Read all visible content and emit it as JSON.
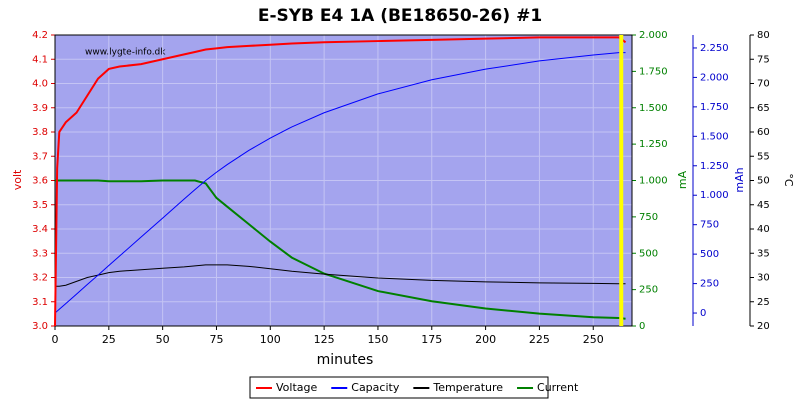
{
  "chart_data": {
    "type": "line",
    "title": "E-SYB E4 1A (BE18650-26) #1",
    "watermark": "www.lygte-info.dk",
    "xlabel": "minutes",
    "ylabel": "volt",
    "ylabel_color": "#dd0000",
    "y2label": "mA",
    "y2label_color": "#008000",
    "y3label": "mAh",
    "y3label_color": "#0000cc",
    "y4label": "°C",
    "y4label_color": "#000000",
    "xlim": [
      0,
      268
    ],
    "xticks": [
      0,
      25,
      50,
      75,
      100,
      125,
      150,
      175,
      200,
      225,
      250
    ],
    "ylim": [
      3.0,
      4.2
    ],
    "yticks": [
      {
        "value": 3.0,
        "label": "3.0"
      },
      3.1,
      3.2,
      3.3,
      3.4,
      3.5,
      3.6,
      3.7,
      3.8,
      3.9,
      {
        "value": 4.0,
        "label": "4.0"
      },
      4.1,
      4.2
    ],
    "y2lim": [
      0,
      2000
    ],
    "y2ticks": [
      0,
      250,
      500,
      750,
      {
        "value": 1000,
        "label": "1.000"
      },
      {
        "value": 1250,
        "label": "1.250"
      },
      {
        "value": 1500,
        "label": "1.500"
      },
      {
        "value": 1750,
        "label": "1.750"
      },
      {
        "value": 2000,
        "label": "2.000"
      }
    ],
    "y3lim": [
      -110,
      2360
    ],
    "y3ticks": [
      0,
      250,
      500,
      750,
      {
        "value": 1000,
        "label": "1.000"
      },
      {
        "value": 1250,
        "label": "1.250"
      },
      {
        "value": 1500,
        "label": "1.500"
      },
      {
        "value": 1750,
        "label": "1.750"
      },
      {
        "value": 2000,
        "label": "2.000"
      },
      {
        "value": 2250,
        "label": "2.250"
      }
    ],
    "y4lim": [
      20,
      80
    ],
    "y4ticks": [
      20,
      25,
      30,
      35,
      40,
      45,
      50,
      55,
      60,
      65,
      70,
      75,
      80
    ],
    "grid": true,
    "vline": {
      "x": 263,
      "color": "#ffff00"
    },
    "x": [
      0,
      1,
      2,
      5,
      10,
      15,
      20,
      25,
      30,
      40,
      50,
      60,
      65,
      70,
      75,
      80,
      90,
      100,
      110,
      125,
      150,
      175,
      200,
      225,
      250,
      262,
      265
    ],
    "series": [
      {
        "name": "Voltage",
        "color": "#ff0000",
        "axis": "y",
        "values": [
          3.0,
          3.65,
          3.8,
          3.84,
          3.88,
          3.95,
          4.02,
          4.06,
          4.07,
          4.08,
          4.1,
          4.12,
          4.13,
          4.14,
          4.145,
          4.15,
          4.155,
          4.16,
          4.165,
          4.17,
          4.175,
          4.18,
          4.185,
          4.19,
          4.19,
          4.19,
          4.17
        ]
      },
      {
        "name": "Capacity",
        "color": "#0000ff",
        "axis": "y3",
        "values": [
          0,
          16,
          32,
          80,
          161,
          242,
          322,
          403,
          484,
          645,
          806,
          968,
          1048,
          1125,
          1195,
          1260,
          1380,
          1485,
          1580,
          1700,
          1860,
          1980,
          2070,
          2140,
          2190,
          2210,
          2210
        ]
      },
      {
        "name": "Temperature",
        "color": "#000000",
        "axis": "y4",
        "values": [
          28.2,
          28.2,
          28.2,
          28.4,
          29.2,
          30,
          30.5,
          31,
          31.3,
          31.6,
          31.9,
          32.2,
          32.4,
          32.6,
          32.6,
          32.6,
          32.3,
          31.8,
          31.3,
          30.7,
          29.9,
          29.4,
          29.1,
          28.9,
          28.8,
          28.7,
          28.7
        ]
      },
      {
        "name": "Current",
        "color": "#008000",
        "axis": "y2",
        "values": [
          1000,
          1000,
          1000,
          1000,
          1000,
          1000,
          1000,
          995,
          995,
          995,
          1000,
          1000,
          1000,
          980,
          880,
          820,
          700,
          580,
          470,
          360,
          240,
          170,
          120,
          85,
          60,
          55,
          50
        ]
      }
    ]
  }
}
